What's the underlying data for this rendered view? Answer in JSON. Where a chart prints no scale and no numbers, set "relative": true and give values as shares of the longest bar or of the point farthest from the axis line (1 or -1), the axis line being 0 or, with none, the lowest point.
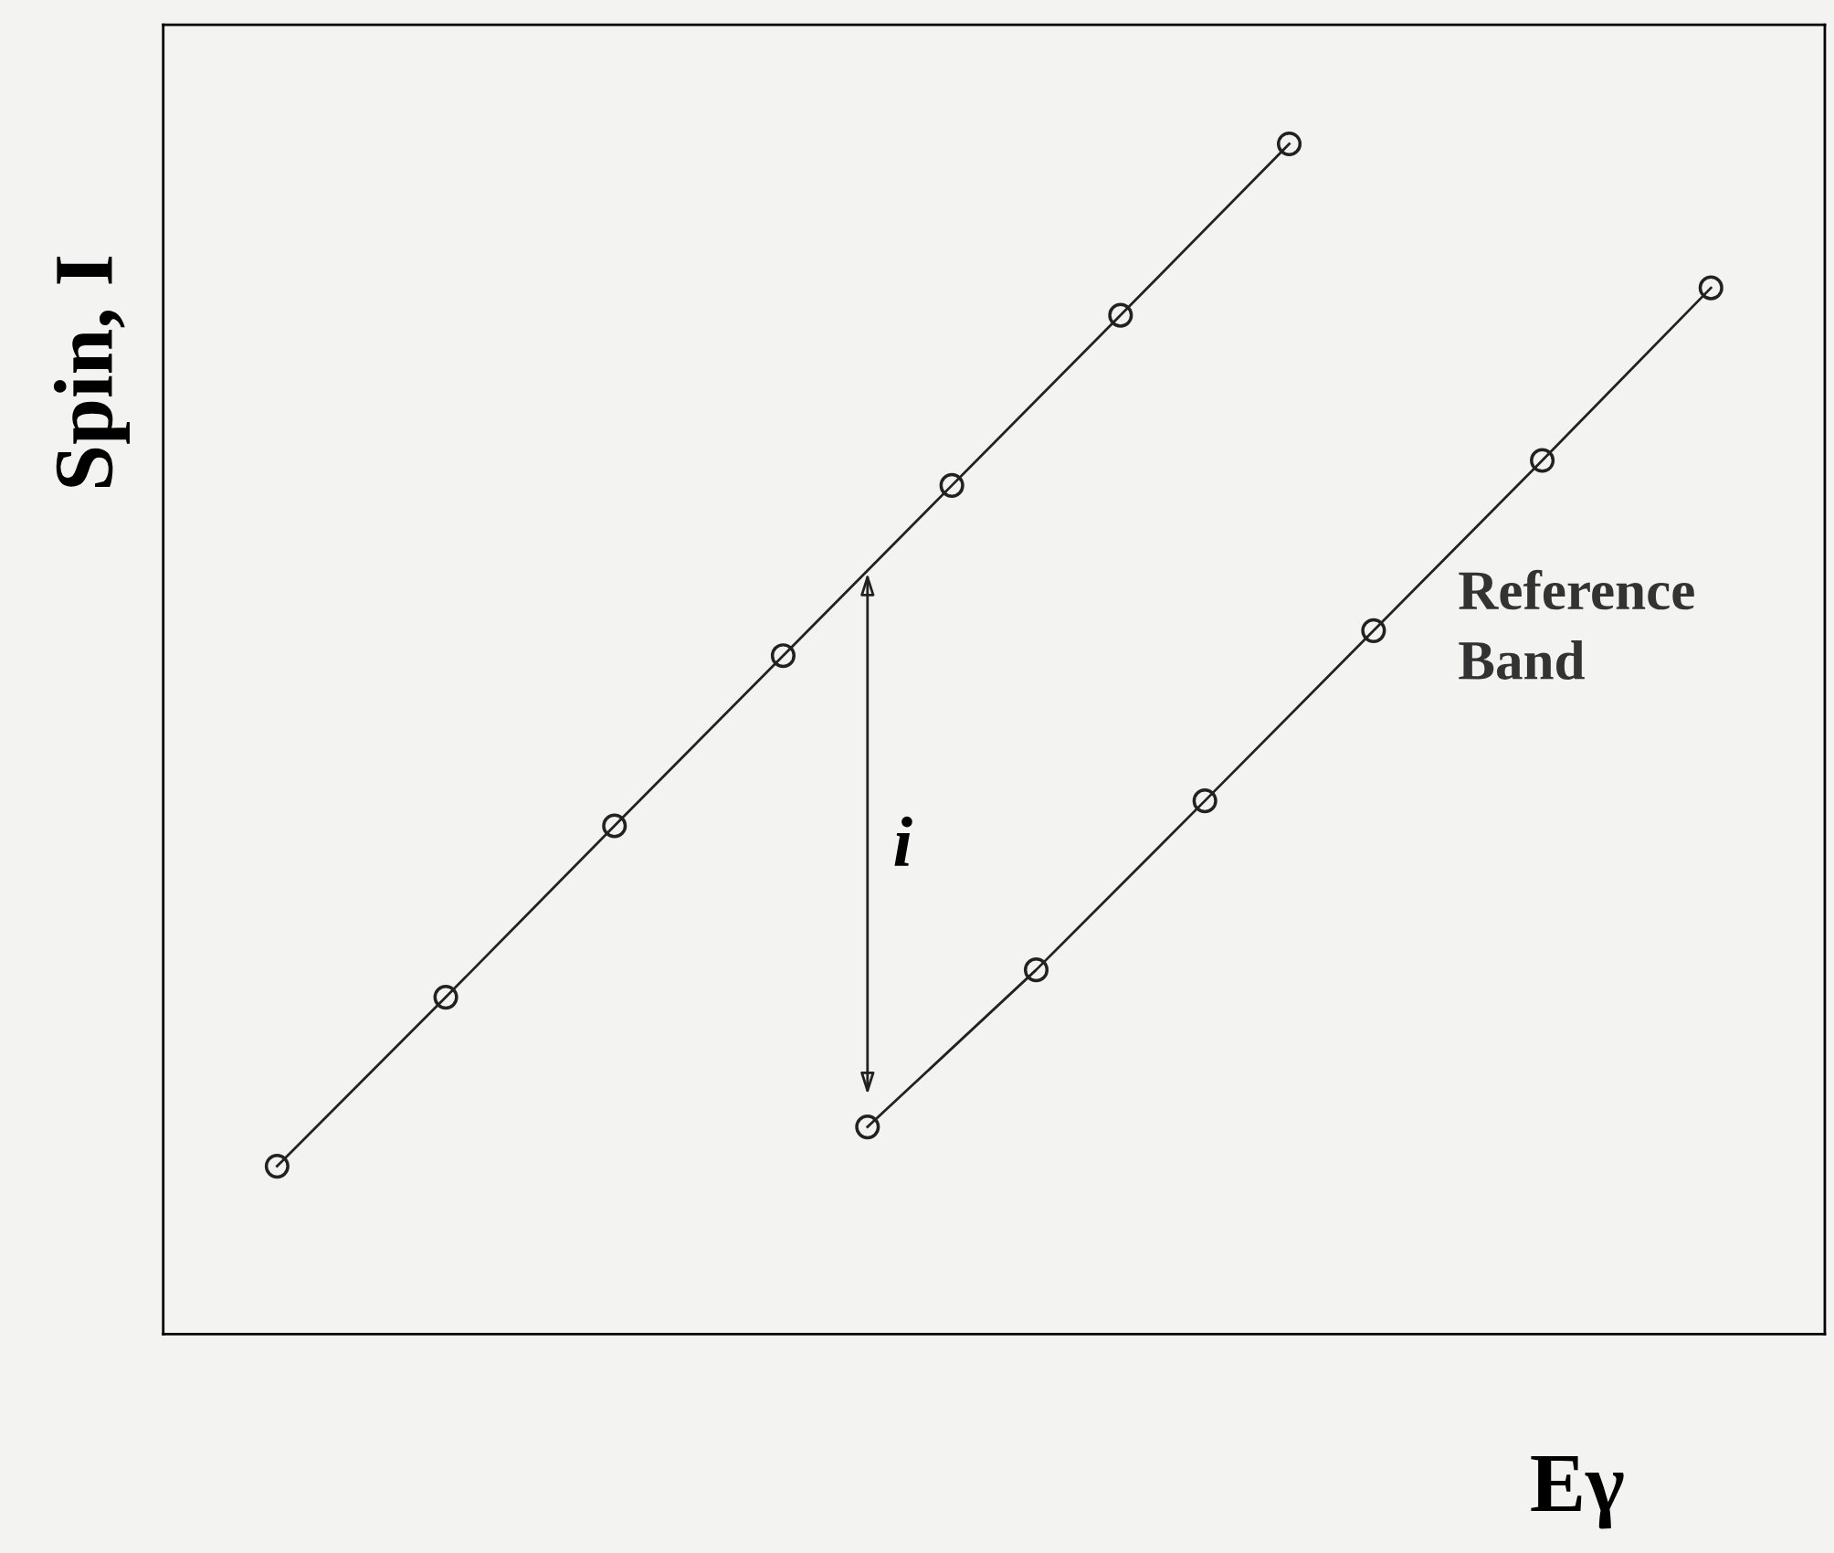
{
  "chart_data": {
    "type": "line",
    "relative": true,
    "xlabel": "Eγ",
    "ylabel": "Spin, I",
    "categories": [
      null,
      null,
      null,
      null,
      null,
      null,
      null,
      null,
      null,
      null,
      null,
      null,
      null,
      null,
      null,
      null,
      null,
      null
    ],
    "series": [
      {
        "color": "#222222",
        "values": [
          0.141,
          null,
          0.283,
          null,
          0.427,
          null,
          0.57,
          null,
          0.713,
          null,
          0.856,
          null,
          1.0,
          null,
          null,
          null,
          null,
          null
        ]
      },
      {
        "name": "Reference Band",
        "color": "#222222",
        "values": [
          null,
          null,
          null,
          null,
          null,
          null,
          null,
          0.174,
          null,
          0.306,
          null,
          0.448,
          null,
          0.591,
          null,
          0.734,
          null,
          0.879
        ]
      }
    ],
    "annotations": [
      "i"
    ],
    "marker": "circle",
    "line_style": "solid"
  }
}
